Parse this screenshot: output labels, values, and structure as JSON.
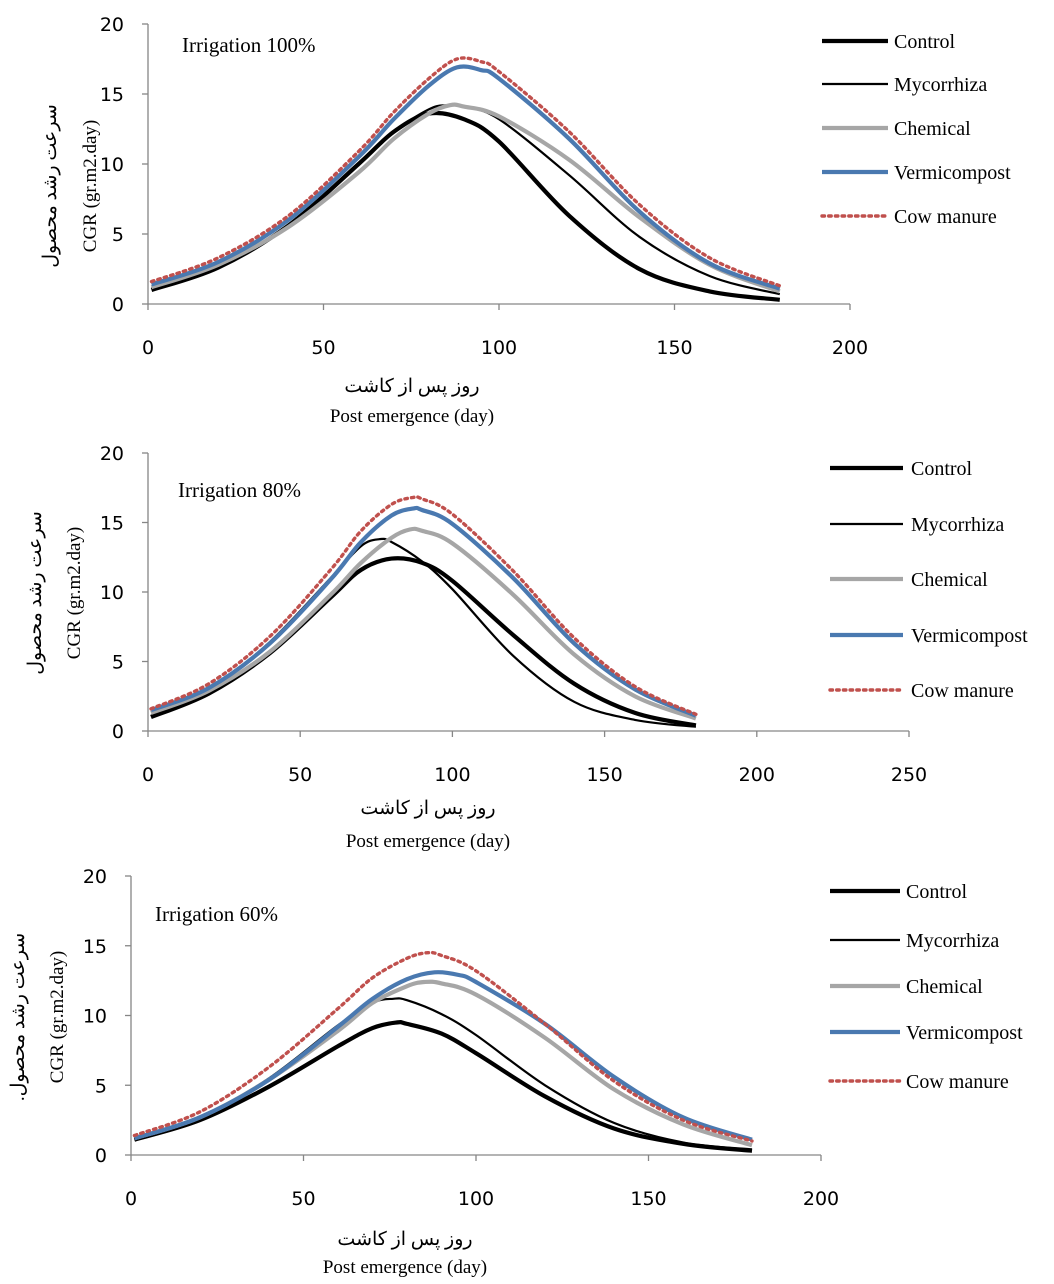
{
  "chart_data": [
    {
      "type": "line",
      "title": "Irrigation 100%",
      "xlabel_fa": "روز پس از کاشت",
      "xlabel": "Post emergence (day)",
      "ylabel_fa": "سرعت رشد محصول",
      "ylabel": "CGR (gr.m2.day)",
      "xlim": [
        0,
        200
      ],
      "ylim": [
        0,
        20
      ],
      "xticks": [
        0,
        50,
        100,
        150,
        200
      ],
      "yticks": [
        0,
        5,
        10,
        15,
        20
      ],
      "grid": false,
      "legend_position": "right",
      "series": [
        {
          "name": "Control",
          "color": "#000000",
          "style": "thick",
          "x": [
            1,
            20,
            40,
            60,
            70,
            80,
            90,
            100,
            120,
            140,
            160,
            180
          ],
          "y": [
            1.0,
            2.6,
            5.6,
            10.0,
            12.3,
            13.6,
            13.2,
            11.6,
            6.3,
            2.5,
            0.9,
            0.3
          ]
        },
        {
          "name": "Mycorrhiza",
          "color": "#000000",
          "style": "thin",
          "x": [
            1,
            20,
            40,
            60,
            70,
            80,
            85,
            90,
            100,
            120,
            140,
            160,
            180
          ],
          "y": [
            1.1,
            2.7,
            5.6,
            10.0,
            12.3,
            13.9,
            14.2,
            14.1,
            13.2,
            9.2,
            4.8,
            2.0,
            0.7
          ]
        },
        {
          "name": "Chemical",
          "color": "#a6a6a6",
          "style": "thick",
          "x": [
            1,
            20,
            40,
            60,
            70,
            80,
            86,
            90,
            100,
            120,
            140,
            160,
            180
          ],
          "y": [
            1.2,
            2.8,
            5.5,
            9.4,
            11.8,
            13.6,
            14.2,
            14.1,
            13.4,
            10.3,
            6.2,
            2.8,
            0.9
          ]
        },
        {
          "name": "Vermicompost",
          "color": "#4a79b0",
          "style": "thick",
          "x": [
            1,
            20,
            40,
            60,
            70,
            80,
            88,
            95,
            100,
            120,
            140,
            160,
            180
          ],
          "y": [
            1.4,
            3.0,
            6.0,
            10.5,
            13.2,
            15.6,
            16.9,
            16.7,
            16.1,
            11.8,
            6.6,
            2.9,
            1.1
          ]
        },
        {
          "name": "Cow manure",
          "color": "#c0504d",
          "style": "dotted",
          "x": [
            1,
            20,
            40,
            60,
            70,
            80,
            88,
            95,
            100,
            120,
            140,
            160,
            180
          ],
          "y": [
            1.6,
            3.3,
            6.3,
            10.9,
            13.7,
            16.1,
            17.5,
            17.3,
            16.6,
            12.3,
            7.1,
            3.3,
            1.3
          ]
        }
      ]
    },
    {
      "type": "line",
      "title": "Irrigation 80%",
      "xlabel_fa": "روز پس از کاشت",
      "xlabel": "Post emergence (day)",
      "ylabel_fa": "سرعت رشد محصول",
      "ylabel": "CGR (gr.m2.day)",
      "xlim": [
        0,
        250
      ],
      "ylim": [
        0,
        20
      ],
      "xticks": [
        0,
        50,
        100,
        150,
        200,
        250
      ],
      "yticks": [
        0,
        5,
        10,
        15,
        20
      ],
      "grid": false,
      "legend_position": "right",
      "series": [
        {
          "name": "Control",
          "color": "#000000",
          "style": "thick",
          "x": [
            1,
            20,
            40,
            60,
            70,
            80,
            90,
            100,
            120,
            140,
            160,
            180
          ],
          "y": [
            1.0,
            2.7,
            5.6,
            9.6,
            11.6,
            12.4,
            12.1,
            10.8,
            6.9,
            3.4,
            1.3,
            0.4
          ]
        },
        {
          "name": "Mycorrhiza",
          "color": "#000000",
          "style": "thin",
          "x": [
            1,
            20,
            40,
            60,
            70,
            76,
            80,
            90,
            100,
            120,
            140,
            160,
            180
          ],
          "y": [
            1.1,
            3.0,
            6.4,
            11.0,
            13.3,
            13.8,
            13.6,
            12.2,
            10.2,
            5.4,
            2.1,
            0.8,
            0.3
          ]
        },
        {
          "name": "Chemical",
          "color": "#a6a6a6",
          "style": "thick",
          "x": [
            1,
            20,
            40,
            60,
            70,
            80,
            86,
            90,
            100,
            120,
            140,
            160,
            180
          ],
          "y": [
            1.3,
            2.9,
            5.7,
            9.8,
            12.1,
            13.9,
            14.5,
            14.4,
            13.5,
            9.8,
            5.5,
            2.5,
            0.9
          ]
        },
        {
          "name": "Vermicompost",
          "color": "#4a79b0",
          "style": "thick",
          "x": [
            1,
            20,
            40,
            60,
            70,
            80,
            87,
            90,
            100,
            120,
            140,
            160,
            180
          ],
          "y": [
            1.5,
            3.1,
            6.3,
            10.9,
            13.6,
            15.5,
            16.0,
            15.9,
            14.9,
            11.0,
            6.3,
            3.0,
            1.1
          ]
        },
        {
          "name": "Cow manure",
          "color": "#c0504d",
          "style": "dotted",
          "x": [
            1,
            20,
            40,
            60,
            70,
            80,
            87,
            90,
            100,
            120,
            140,
            160,
            180
          ],
          "y": [
            1.6,
            3.4,
            6.8,
            11.6,
            14.4,
            16.3,
            16.8,
            16.7,
            15.6,
            11.5,
            6.7,
            3.2,
            1.2
          ]
        }
      ]
    },
    {
      "type": "line",
      "title": "Irrigation 60%",
      "xlabel_fa": "روز پس از کاشت",
      "xlabel": "Post emergence (day)",
      "ylabel_fa": "سرعت رشد محصول.",
      "ylabel": "CGR (gr.m2.day)",
      "xlim": [
        0,
        200
      ],
      "ylim": [
        0,
        20
      ],
      "xticks": [
        0,
        50,
        100,
        150,
        200
      ],
      "yticks": [
        0,
        5,
        10,
        15,
        20
      ],
      "grid": false,
      "legend_position": "right",
      "series": [
        {
          "name": "Control",
          "color": "#000000",
          "style": "thick",
          "x": [
            1,
            20,
            40,
            60,
            70,
            77,
            80,
            90,
            100,
            120,
            140,
            160,
            180
          ],
          "y": [
            1.1,
            2.5,
            4.9,
            7.8,
            9.1,
            9.5,
            9.4,
            8.7,
            7.3,
            4.2,
            1.9,
            0.8,
            0.3
          ]
        },
        {
          "name": "Mycorrhiza",
          "color": "#000000",
          "style": "thin",
          "x": [
            1,
            20,
            40,
            60,
            70,
            76,
            80,
            90,
            100,
            120,
            140,
            160,
            180
          ],
          "y": [
            1.1,
            2.7,
            5.5,
            9.3,
            10.9,
            11.2,
            11.1,
            10.1,
            8.6,
            5.0,
            2.3,
            0.9,
            0.4
          ]
        },
        {
          "name": "Chemical",
          "color": "#a6a6a6",
          "style": "thick",
          "x": [
            1,
            20,
            40,
            60,
            70,
            80,
            85,
            90,
            100,
            120,
            140,
            160,
            180
          ],
          "y": [
            1.2,
            2.7,
            5.4,
            8.9,
            10.9,
            12.1,
            12.4,
            12.3,
            11.5,
            8.4,
            4.7,
            2.2,
            0.7
          ]
        },
        {
          "name": "Vermicompost",
          "color": "#4a79b0",
          "style": "thick",
          "x": [
            1,
            20,
            40,
            60,
            70,
            80,
            88,
            95,
            100,
            120,
            140,
            160,
            180
          ],
          "y": [
            1.2,
            2.7,
            5.4,
            9.2,
            11.2,
            12.6,
            13.1,
            12.9,
            12.4,
            9.4,
            5.6,
            2.7,
            1.1
          ]
        },
        {
          "name": "Cow manure",
          "color": "#c0504d",
          "style": "dotted",
          "x": [
            1,
            20,
            40,
            60,
            70,
            80,
            86,
            90,
            100,
            120,
            140,
            160,
            180
          ],
          "y": [
            1.4,
            3.1,
            6.3,
            10.5,
            12.7,
            14.1,
            14.5,
            14.3,
            13.2,
            9.4,
            5.3,
            2.5,
            1.0
          ]
        }
      ]
    }
  ]
}
